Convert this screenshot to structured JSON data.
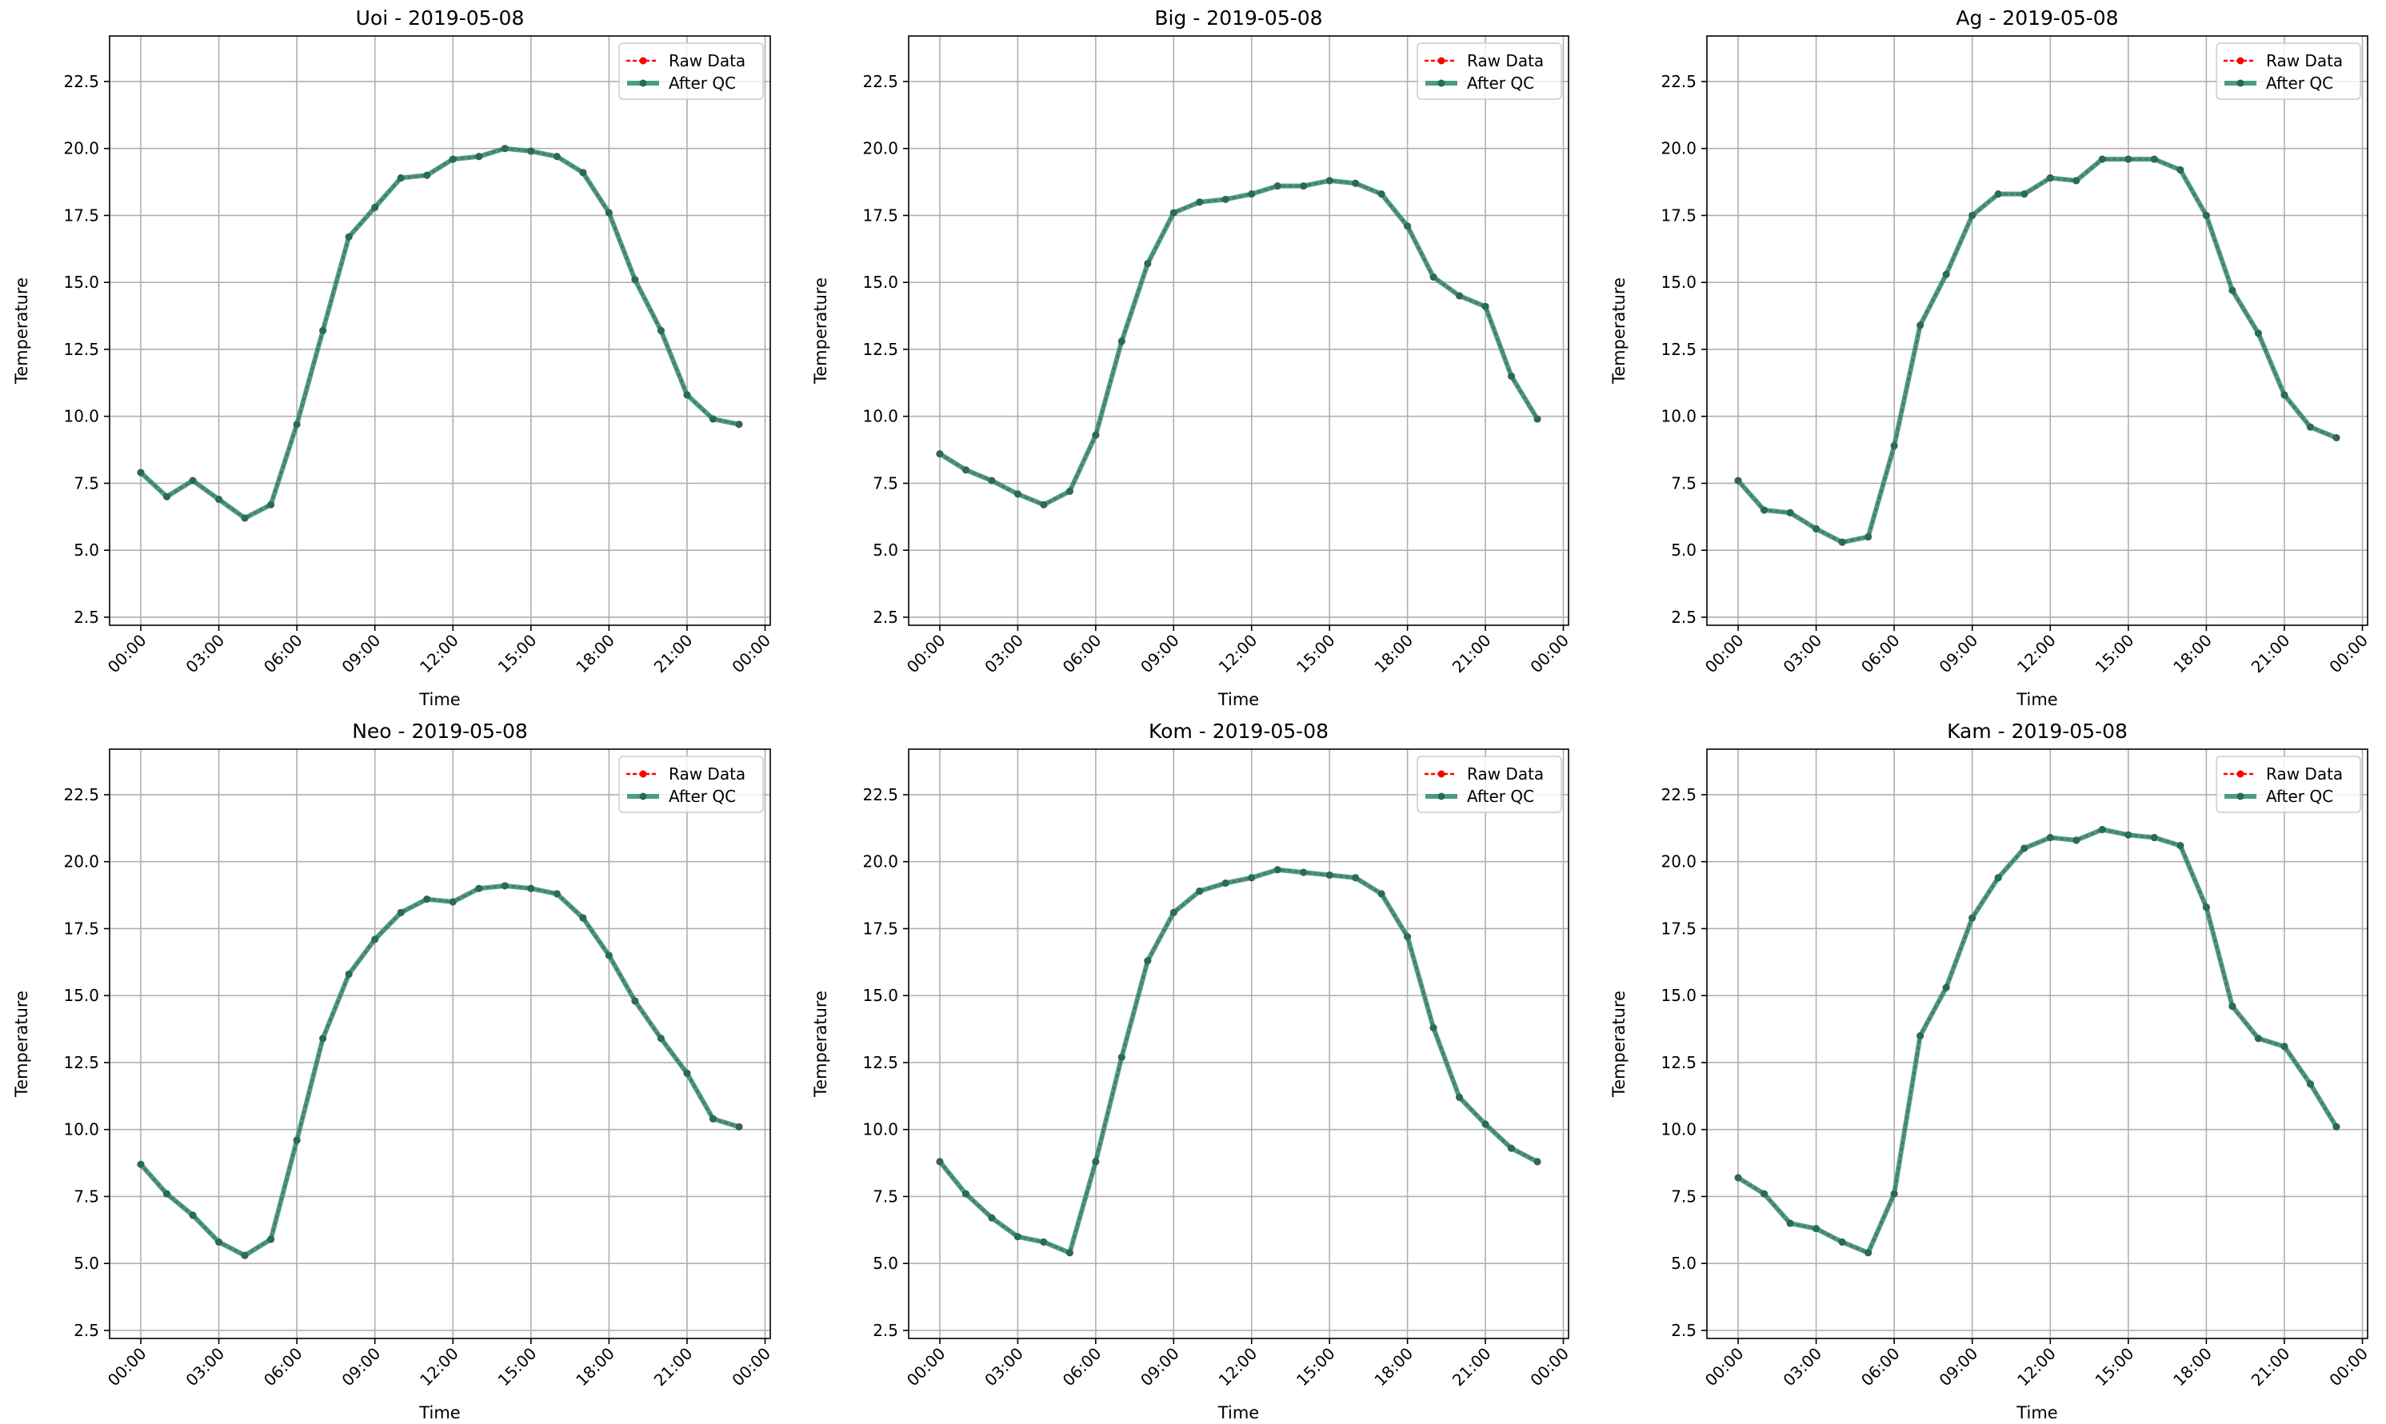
{
  "x_tick_labels": [
    "00:00",
    "03:00",
    "06:00",
    "09:00",
    "12:00",
    "15:00",
    "18:00",
    "21:00",
    "00:00"
  ],
  "y_tick_labels": [
    "2.5",
    "5.0",
    "7.5",
    "10.0",
    "12.5",
    "15.0",
    "17.5",
    "20.0",
    "22.5"
  ],
  "legend": {
    "raw_label": "Raw Data",
    "qc_label": "After QC"
  },
  "colors": {
    "raw": "#ff0000",
    "qc": "#2e8b6e",
    "grid": "#b0b0b0",
    "axes": "#000000"
  },
  "chart_data": [
    {
      "type": "line",
      "title": "Uoi - 2019-05-08",
      "xlabel": "Time",
      "ylabel": "Temperature",
      "xlim_hours": [
        -1.2,
        24.2
      ],
      "ylim": [
        2.2,
        24.2
      ],
      "x_ticks_hours": [
        0,
        3,
        6,
        9,
        12,
        15,
        18,
        21,
        24
      ],
      "y_ticks": [
        2.5,
        5.0,
        7.5,
        10.0,
        12.5,
        15.0,
        17.5,
        20.0,
        22.5
      ],
      "grid": true,
      "legend_position": "top-right",
      "x": [
        "00:00",
        "01:00",
        "02:00",
        "03:00",
        "04:00",
        "05:00",
        "06:00",
        "07:00",
        "08:00",
        "09:00",
        "10:00",
        "11:00",
        "12:00",
        "13:00",
        "14:00",
        "15:00",
        "16:00",
        "17:00",
        "18:00",
        "19:00",
        "20:00",
        "21:00",
        "22:00",
        "23:00"
      ],
      "series": [
        {
          "name": "Raw Data",
          "values": [
            7.9,
            7.0,
            7.6,
            6.9,
            6.2,
            6.7,
            9.7,
            13.2,
            16.7,
            17.8,
            18.9,
            19.0,
            19.6,
            19.7,
            20.0,
            19.9,
            19.7,
            19.1,
            17.6,
            15.1,
            13.2,
            10.8,
            9.9,
            9.7
          ]
        },
        {
          "name": "After QC",
          "values": [
            7.9,
            7.0,
            7.6,
            6.9,
            6.2,
            6.7,
            9.7,
            13.2,
            16.7,
            17.8,
            18.9,
            19.0,
            19.6,
            19.7,
            20.0,
            19.9,
            19.7,
            19.1,
            17.6,
            15.1,
            13.2,
            10.8,
            9.9,
            9.7
          ]
        }
      ]
    },
    {
      "type": "line",
      "title": "Big - 2019-05-08",
      "xlabel": "Time",
      "ylabel": "Temperature",
      "xlim_hours": [
        -1.2,
        24.2
      ],
      "ylim": [
        2.2,
        24.2
      ],
      "x_ticks_hours": [
        0,
        3,
        6,
        9,
        12,
        15,
        18,
        21,
        24
      ],
      "y_ticks": [
        2.5,
        5.0,
        7.5,
        10.0,
        12.5,
        15.0,
        17.5,
        20.0,
        22.5
      ],
      "grid": true,
      "legend_position": "top-right",
      "x": [
        "00:00",
        "01:00",
        "02:00",
        "03:00",
        "04:00",
        "05:00",
        "06:00",
        "07:00",
        "08:00",
        "09:00",
        "10:00",
        "11:00",
        "12:00",
        "13:00",
        "14:00",
        "15:00",
        "16:00",
        "17:00",
        "18:00",
        "19:00",
        "20:00",
        "21:00",
        "22:00",
        "23:00"
      ],
      "series": [
        {
          "name": "Raw Data",
          "values": [
            8.6,
            8.0,
            7.6,
            7.1,
            6.7,
            7.2,
            9.3,
            12.8,
            15.7,
            17.6,
            18.0,
            18.1,
            18.3,
            18.6,
            18.6,
            18.8,
            18.7,
            18.3,
            17.1,
            15.2,
            14.5,
            14.1,
            11.5,
            9.9
          ]
        },
        {
          "name": "After QC",
          "values": [
            8.6,
            8.0,
            7.6,
            7.1,
            6.7,
            7.2,
            9.3,
            12.8,
            15.7,
            17.6,
            18.0,
            18.1,
            18.3,
            18.6,
            18.6,
            18.8,
            18.7,
            18.3,
            17.1,
            15.2,
            14.5,
            14.1,
            11.5,
            9.9
          ]
        }
      ]
    },
    {
      "type": "line",
      "title": "Ag - 2019-05-08",
      "xlabel": "Time",
      "ylabel": "Temperature",
      "xlim_hours": [
        -1.2,
        24.2
      ],
      "ylim": [
        2.2,
        24.2
      ],
      "x_ticks_hours": [
        0,
        3,
        6,
        9,
        12,
        15,
        18,
        21,
        24
      ],
      "y_ticks": [
        2.5,
        5.0,
        7.5,
        10.0,
        12.5,
        15.0,
        17.5,
        20.0,
        22.5
      ],
      "grid": true,
      "legend_position": "top-right",
      "x": [
        "00:00",
        "01:00",
        "02:00",
        "03:00",
        "04:00",
        "05:00",
        "06:00",
        "07:00",
        "08:00",
        "09:00",
        "10:00",
        "11:00",
        "12:00",
        "13:00",
        "14:00",
        "15:00",
        "16:00",
        "17:00",
        "18:00",
        "19:00",
        "20:00",
        "21:00",
        "22:00",
        "23:00"
      ],
      "series": [
        {
          "name": "Raw Data",
          "values": [
            7.6,
            6.5,
            6.4,
            5.8,
            5.3,
            5.5,
            8.9,
            13.4,
            15.3,
            17.5,
            18.3,
            18.3,
            18.9,
            18.8,
            19.6,
            19.6,
            19.6,
            19.2,
            17.5,
            14.7,
            13.1,
            10.8,
            9.6,
            9.2
          ]
        },
        {
          "name": "After QC",
          "values": [
            7.6,
            6.5,
            6.4,
            5.8,
            5.3,
            5.5,
            8.9,
            13.4,
            15.3,
            17.5,
            18.3,
            18.3,
            18.9,
            18.8,
            19.6,
            19.6,
            19.6,
            19.2,
            17.5,
            14.7,
            13.1,
            10.8,
            9.6,
            9.2
          ]
        }
      ]
    },
    {
      "type": "line",
      "title": "Neo - 2019-05-08",
      "xlabel": "Time",
      "ylabel": "Temperature",
      "xlim_hours": [
        -1.2,
        24.2
      ],
      "ylim": [
        2.2,
        24.2
      ],
      "x_ticks_hours": [
        0,
        3,
        6,
        9,
        12,
        15,
        18,
        21,
        24
      ],
      "y_ticks": [
        2.5,
        5.0,
        7.5,
        10.0,
        12.5,
        15.0,
        17.5,
        20.0,
        22.5
      ],
      "grid": true,
      "legend_position": "top-right",
      "x": [
        "00:00",
        "01:00",
        "02:00",
        "03:00",
        "04:00",
        "05:00",
        "06:00",
        "07:00",
        "08:00",
        "09:00",
        "10:00",
        "11:00",
        "12:00",
        "13:00",
        "14:00",
        "15:00",
        "16:00",
        "17:00",
        "18:00",
        "19:00",
        "20:00",
        "21:00",
        "22:00",
        "23:00"
      ],
      "series": [
        {
          "name": "Raw Data",
          "values": [
            8.7,
            7.6,
            6.8,
            5.8,
            5.3,
            5.9,
            9.6,
            13.4,
            15.8,
            17.1,
            18.1,
            18.6,
            18.5,
            19.0,
            19.1,
            19.0,
            18.8,
            17.9,
            16.5,
            14.8,
            13.4,
            12.1,
            10.4,
            10.1
          ]
        },
        {
          "name": "After QC",
          "values": [
            8.7,
            7.6,
            6.8,
            5.8,
            5.3,
            5.9,
            9.6,
            13.4,
            15.8,
            17.1,
            18.1,
            18.6,
            18.5,
            19.0,
            19.1,
            19.0,
            18.8,
            17.9,
            16.5,
            14.8,
            13.4,
            12.1,
            10.4,
            10.1
          ]
        }
      ]
    },
    {
      "type": "line",
      "title": "Kom - 2019-05-08",
      "xlabel": "Time",
      "ylabel": "Temperature",
      "xlim_hours": [
        -1.2,
        24.2
      ],
      "ylim": [
        2.2,
        24.2
      ],
      "x_ticks_hours": [
        0,
        3,
        6,
        9,
        12,
        15,
        18,
        21,
        24
      ],
      "y_ticks": [
        2.5,
        5.0,
        7.5,
        10.0,
        12.5,
        15.0,
        17.5,
        20.0,
        22.5
      ],
      "grid": true,
      "legend_position": "top-right",
      "x": [
        "00:00",
        "01:00",
        "02:00",
        "03:00",
        "04:00",
        "05:00",
        "06:00",
        "07:00",
        "08:00",
        "09:00",
        "10:00",
        "11:00",
        "12:00",
        "13:00",
        "14:00",
        "15:00",
        "16:00",
        "17:00",
        "18:00",
        "19:00",
        "20:00",
        "21:00",
        "22:00",
        "23:00"
      ],
      "series": [
        {
          "name": "Raw Data",
          "values": [
            8.8,
            7.6,
            6.7,
            6.0,
            5.8,
            5.4,
            8.8,
            12.7,
            16.3,
            18.1,
            18.9,
            19.2,
            19.4,
            19.7,
            19.6,
            19.5,
            19.4,
            18.8,
            17.2,
            13.8,
            11.2,
            10.2,
            9.3,
            8.8
          ]
        },
        {
          "name": "After QC",
          "values": [
            8.8,
            7.6,
            6.7,
            6.0,
            5.8,
            5.4,
            8.8,
            12.7,
            16.3,
            18.1,
            18.9,
            19.2,
            19.4,
            19.7,
            19.6,
            19.5,
            19.4,
            18.8,
            17.2,
            13.8,
            11.2,
            10.2,
            9.3,
            8.8
          ]
        }
      ]
    },
    {
      "type": "line",
      "title": "Kam - 2019-05-08",
      "xlabel": "Time",
      "ylabel": "Temperature",
      "xlim_hours": [
        -1.2,
        24.2
      ],
      "ylim": [
        2.2,
        24.2
      ],
      "x_ticks_hours": [
        0,
        3,
        6,
        9,
        12,
        15,
        18,
        21,
        24
      ],
      "y_ticks": [
        2.5,
        5.0,
        7.5,
        10.0,
        12.5,
        15.0,
        17.5,
        20.0,
        22.5
      ],
      "grid": true,
      "legend_position": "top-right",
      "x": [
        "00:00",
        "01:00",
        "02:00",
        "03:00",
        "04:00",
        "05:00",
        "06:00",
        "07:00",
        "08:00",
        "09:00",
        "10:00",
        "11:00",
        "12:00",
        "13:00",
        "14:00",
        "15:00",
        "16:00",
        "17:00",
        "18:00",
        "19:00",
        "20:00",
        "21:00",
        "22:00",
        "23:00"
      ],
      "series": [
        {
          "name": "Raw Data",
          "values": [
            8.2,
            7.6,
            6.5,
            6.3,
            5.8,
            5.4,
            7.6,
            13.5,
            15.3,
            17.9,
            19.4,
            20.5,
            20.9,
            20.8,
            21.2,
            21.0,
            20.9,
            20.6,
            18.3,
            14.6,
            13.4,
            13.1,
            11.7,
            10.1
          ]
        },
        {
          "name": "After QC",
          "values": [
            8.2,
            7.6,
            6.5,
            6.3,
            5.8,
            5.4,
            7.6,
            13.5,
            15.3,
            17.9,
            19.4,
            20.5,
            20.9,
            20.8,
            21.2,
            21.0,
            20.9,
            20.6,
            18.3,
            14.6,
            13.4,
            13.1,
            11.7,
            10.1
          ]
        }
      ]
    }
  ]
}
